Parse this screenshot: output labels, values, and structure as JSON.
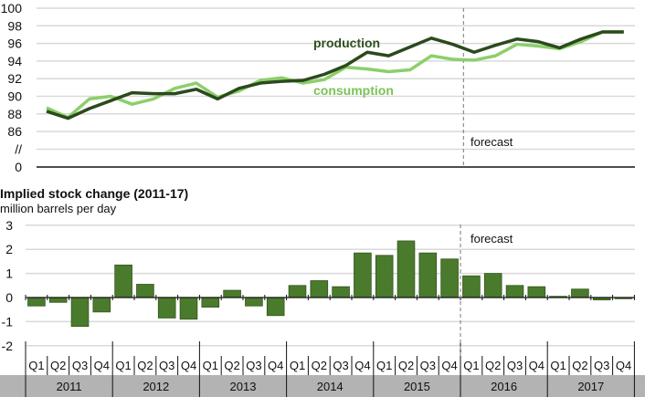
{
  "chart_data": [
    {
      "type": "line",
      "x": [
        "2011Q1",
        "2011Q2",
        "2011Q3",
        "2011Q4",
        "2012Q1",
        "2012Q2",
        "2012Q3",
        "2012Q4",
        "2013Q1",
        "2013Q2",
        "2013Q3",
        "2013Q4",
        "2014Q1",
        "2014Q2",
        "2014Q3",
        "2014Q4",
        "2015Q1",
        "2015Q2",
        "2015Q3",
        "2015Q4",
        "2016Q1",
        "2016Q2",
        "2016Q3",
        "2016Q4",
        "2017Q1",
        "2017Q2",
        "2017Q3",
        "2017Q4"
      ],
      "series": [
        {
          "name": "production",
          "color": "#2b4a1c",
          "values": [
            88.3,
            87.5,
            88.6,
            89.5,
            90.4,
            90.3,
            90.3,
            90.8,
            89.7,
            90.9,
            91.5,
            91.7,
            91.8,
            92.5,
            93.5,
            95.0,
            94.6,
            95.6,
            96.6,
            95.9,
            95.0,
            95.8,
            96.5,
            96.2,
            95.5,
            96.5,
            97.3,
            97.3
          ]
        },
        {
          "name": "consumption",
          "color": "#8ccf6a",
          "values": [
            88.7,
            87.6,
            89.7,
            90.0,
            89.1,
            89.7,
            90.9,
            91.5,
            89.9,
            90.6,
            91.8,
            92.1,
            91.5,
            91.9,
            93.3,
            93.1,
            92.8,
            93.0,
            94.6,
            94.2,
            94.1,
            94.6,
            95.9,
            95.7,
            95.4,
            96.2,
            97.3,
            97.3
          ]
        }
      ],
      "yticks": [
        "100",
        "98",
        "96",
        "94",
        "92",
        "90",
        "88",
        "86",
        "//",
        "0"
      ],
      "ylim": [
        86,
        100
      ],
      "axis_break": true,
      "forecast_label": "forecast",
      "forecast_start": "2016Q1",
      "grid": true
    },
    {
      "type": "bar",
      "title": "Implied stock change (2011-17)",
      "ylabel": "million barrels per day",
      "quarters": [
        "Q1",
        "Q2",
        "Q3",
        "Q4"
      ],
      "years": [
        "2011",
        "2012",
        "2013",
        "2014",
        "2015",
        "2016",
        "2017"
      ],
      "values": [
        -0.35,
        -0.2,
        -1.2,
        -0.6,
        1.35,
        0.55,
        -0.85,
        -0.9,
        -0.4,
        0.3,
        -0.35,
        -0.75,
        0.5,
        0.7,
        0.45,
        1.85,
        1.75,
        2.35,
        1.85,
        1.6,
        0.9,
        1.0,
        0.5,
        0.45,
        0.05,
        0.35,
        -0.1,
        -0.05
      ],
      "yticks": [
        "3",
        "2",
        "1",
        "0",
        "-1",
        "-2"
      ],
      "ylim": [
        -2,
        3
      ],
      "forecast_label": "forecast",
      "bar_color": "#4a7a2b",
      "grid": true
    }
  ]
}
